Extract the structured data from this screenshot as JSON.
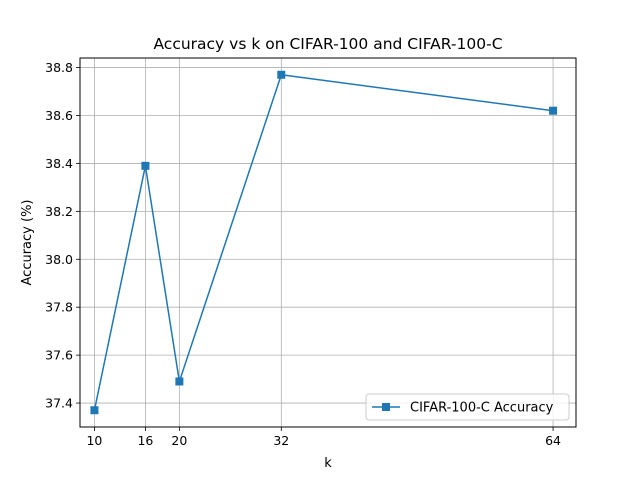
{
  "chart_data": {
    "type": "line",
    "title": "Accuracy vs k on CIFAR-100 and CIFAR-100-C",
    "xlabel": "k",
    "ylabel": "Accuracy (%)",
    "x": [
      10,
      16,
      20,
      32,
      64
    ],
    "xticks": [
      "10",
      "16",
      "20",
      "32",
      "64"
    ],
    "xlim": [
      8.3,
      66.7
    ],
    "ylim": [
      37.3,
      38.84
    ],
    "yticks": [
      "37.4",
      "37.6",
      "37.8",
      "38.0",
      "38.2",
      "38.4",
      "38.6",
      "38.8"
    ],
    "ytick_values": [
      37.4,
      37.6,
      37.8,
      38.0,
      38.2,
      38.4,
      38.6,
      38.8
    ],
    "grid": true,
    "legend_position": "lower right",
    "series": [
      {
        "name": "CIFAR-100-C Accuracy",
        "values": [
          37.37,
          38.39,
          37.49,
          38.77,
          38.62
        ],
        "color": "#1f77b4",
        "marker": "square"
      }
    ]
  }
}
